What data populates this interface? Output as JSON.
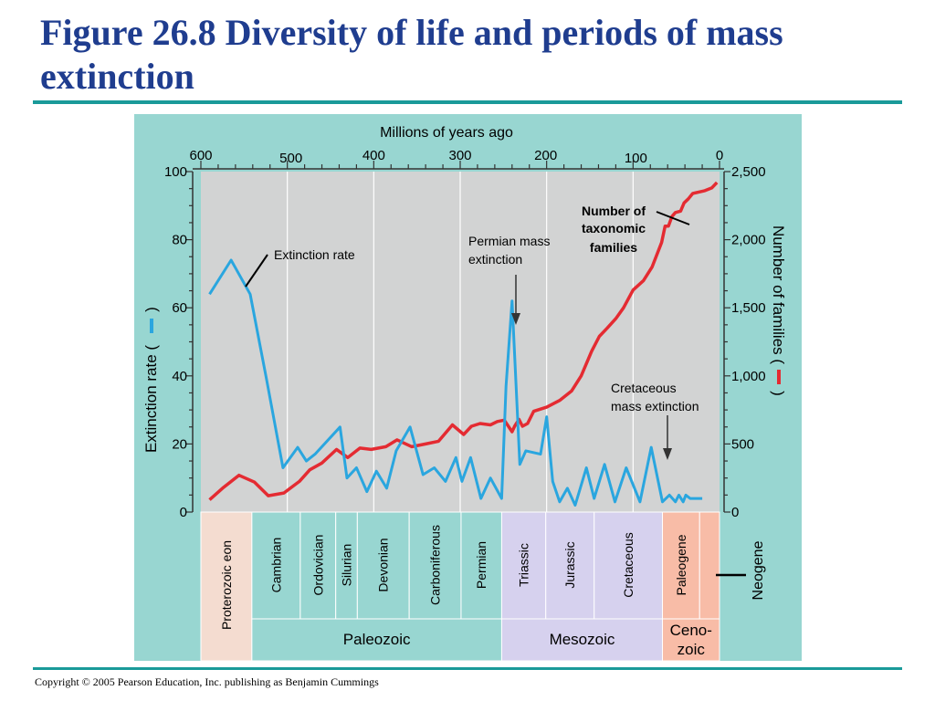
{
  "slide": {
    "title": "Figure 26.8 Diversity of life and periods of mass extinction",
    "copyright": "Copyright © 2005 Pearson Education, Inc. publishing as Benjamin Cummings"
  },
  "chart_data": {
    "type": "line",
    "title": "",
    "xlabel": "Millions of years ago",
    "xlim": [
      600,
      0
    ],
    "x_ticks": [
      "600",
      "500",
      "400",
      "300",
      "200",
      "100",
      "0"
    ],
    "ylabel_left": "Extinction rate (",
    "ylabel_left_close": ")",
    "ylim_left": [
      0,
      100
    ],
    "y_ticks_left": [
      "0",
      "20",
      "40",
      "60",
      "80",
      "100"
    ],
    "ylabel_right": "Number of families (",
    "ylabel_right_close": ")",
    "ylim_right": [
      0,
      2500
    ],
    "y_ticks_right": [
      "0",
      "500",
      "1,000",
      "1,500",
      "2,000",
      "2,500"
    ],
    "grid_x": true,
    "series": [
      {
        "name": "Extinction rate",
        "axis": "left",
        "color": "#2aa6df",
        "x": [
          590,
          565,
          543,
          524,
          505,
          488,
          478,
          468,
          439,
          431,
          420,
          408,
          397,
          385,
          374,
          358,
          343,
          330,
          317,
          305,
          298,
          288,
          276,
          265,
          252,
          247,
          240,
          231,
          224,
          207,
          200,
          193,
          185,
          176,
          167,
          154,
          145,
          133,
          121,
          108,
          92,
          79,
          66,
          58,
          51,
          47,
          42,
          39,
          34,
          28,
          20
        ],
        "y": [
          64,
          74,
          64,
          39,
          13,
          19,
          15,
          17,
          25,
          10,
          13,
          6,
          12,
          7,
          18,
          25,
          11,
          13,
          9,
          16,
          9,
          16,
          4,
          10,
          4,
          37,
          62,
          14,
          18,
          17,
          28,
          9,
          3,
          7,
          2,
          13,
          4,
          14,
          3,
          13,
          3,
          19,
          3,
          5,
          3,
          5,
          3,
          5,
          4,
          4,
          4
        ]
      },
      {
        "name": "Number of taxonomic families",
        "axis": "right",
        "color": "#e42b32",
        "x": [
          590,
          575,
          556,
          538,
          522,
          504,
          486,
          474,
          460,
          443,
          430,
          416,
          403,
          386,
          373,
          356,
          340,
          325,
          309,
          296,
          287,
          277,
          265,
          257,
          249,
          240,
          237,
          232,
          228,
          222,
          215,
          200,
          185,
          171,
          160,
          148,
          139,
          130,
          120,
          111,
          100,
          88,
          78,
          67,
          63,
          59,
          55,
          51,
          45,
          41,
          36,
          31,
          24,
          17,
          9,
          3
        ],
        "y": [
          90,
          175,
          270,
          220,
          120,
          140,
          225,
          310,
          360,
          460,
          400,
          470,
          460,
          480,
          530,
          480,
          500,
          520,
          640,
          570,
          630,
          650,
          640,
          665,
          675,
          590,
          630,
          680,
          630,
          650,
          740,
          770,
          820,
          890,
          1000,
          1180,
          1290,
          1350,
          1420,
          1500,
          1630,
          1700,
          1800,
          1980,
          2100,
          2100,
          2170,
          2200,
          2210,
          2270,
          2300,
          2340,
          2350,
          2360,
          2380,
          2420
        ]
      }
    ],
    "annotations": {
      "extinction_rate": "Extinction rate",
      "families_line1": "Number of",
      "families_line2": "taxonomic",
      "families_line3": "families",
      "permian_line1": "Permian mass",
      "permian_line2": "extinction",
      "cretaceous_line1": "Cretaceous",
      "cretaceous_line2": "mass extinction"
    },
    "time_scale": {
      "periods": [
        {
          "name": "Proterozoic eon",
          "start": 600,
          "end": 541,
          "color": "#f4dcd0"
        },
        {
          "name": "Cambrian",
          "start": 541,
          "end": 485,
          "color": "#98d6d1"
        },
        {
          "name": "Ordovician",
          "start": 485,
          "end": 444,
          "color": "#98d6d1"
        },
        {
          "name": "Silurian",
          "start": 444,
          "end": 419,
          "color": "#98d6d1"
        },
        {
          "name": "Devonian",
          "start": 419,
          "end": 359,
          "color": "#98d6d1"
        },
        {
          "name": "Carboniferous",
          "start": 359,
          "end": 299,
          "color": "#98d6d1"
        },
        {
          "name": "Permian",
          "start": 299,
          "end": 252,
          "color": "#98d6d1"
        },
        {
          "name": "Triassic",
          "start": 252,
          "end": 201,
          "color": "#d6d1ee"
        },
        {
          "name": "Jurassic",
          "start": 201,
          "end": 145,
          "color": "#d6d1ee"
        },
        {
          "name": "Cretaceous",
          "start": 145,
          "end": 66,
          "color": "#d6d1ee"
        },
        {
          "name": "Paleogene",
          "start": 66,
          "end": 23,
          "color": "#f8bca7"
        },
        {
          "name": "",
          "start": 23,
          "end": 0,
          "color": "#f8bca7"
        }
      ],
      "neogene_label": "Neogene",
      "eras": [
        {
          "name": "Paleozoic",
          "start": 541,
          "end": 252,
          "color": "#98d6d1"
        },
        {
          "name": "Mesozoic",
          "start": 252,
          "end": 66,
          "color": "#d6d1ee"
        },
        {
          "name_line1": "Ceno-",
          "name_line2": "zoic",
          "start": 66,
          "end": 0,
          "color": "#f8bca7"
        }
      ]
    }
  }
}
